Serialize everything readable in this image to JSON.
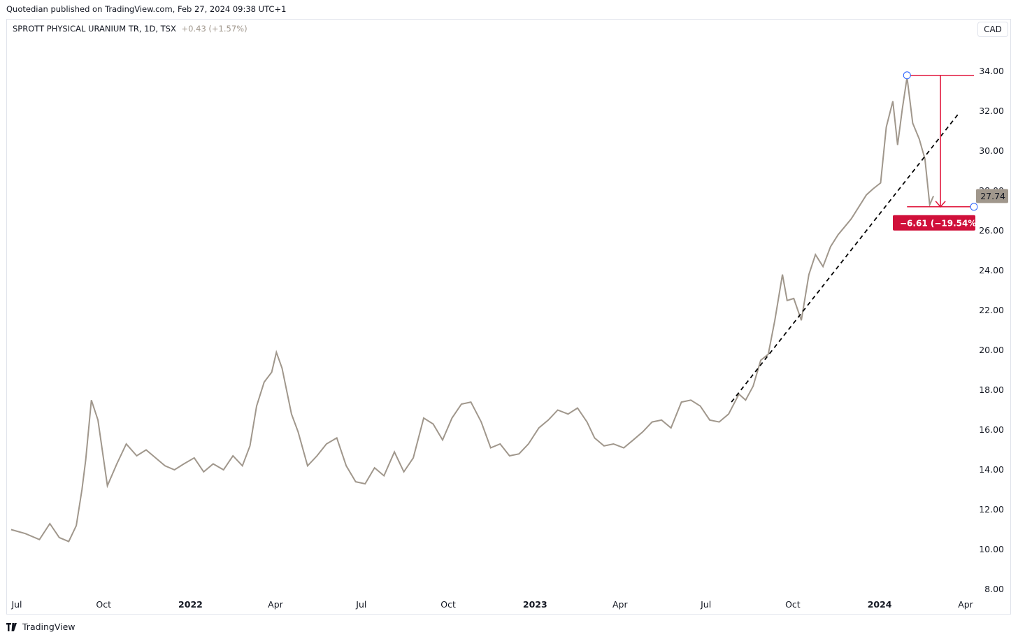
{
  "header": {
    "published_by": "Quotedian published on TradingView.com, Feb 27, 2024 09:38 UTC+1",
    "symbol_title": "SPROTT PHYSICAL URANIUM TR, 1D, TSX",
    "change_text": "+0.43 (+1.57%)",
    "currency_button": "CAD"
  },
  "footer": {
    "brand": "TradingView"
  },
  "colors": {
    "price_line": "#a0978c",
    "measure_red": "#e0173c",
    "label_red_bg": "#d0103a",
    "last_price_bg": "#a0978c",
    "trendline": "#000000"
  },
  "chart_data": {
    "type": "line",
    "title": "SPROTT PHYSICAL URANIUM TR, 1D, TSX",
    "xlabel": "",
    "ylabel": "",
    "ylim": [
      8,
      35
    ],
    "y_ticks": [
      "8.00",
      "10.00",
      "12.00",
      "14.00",
      "16.00",
      "18.00",
      "20.00",
      "22.00",
      "24.00",
      "26.00",
      "28.00",
      "30.00",
      "32.00",
      "34.00"
    ],
    "x_ticks": [
      {
        "label": "Jul",
        "date": "2021-07-01",
        "bold": false
      },
      {
        "label": "Oct",
        "date": "2021-10-01",
        "bold": false
      },
      {
        "label": "2022",
        "date": "2022-01-01",
        "bold": true
      },
      {
        "label": "Apr",
        "date": "2022-04-01",
        "bold": false
      },
      {
        "label": "Jul",
        "date": "2022-07-01",
        "bold": false
      },
      {
        "label": "Oct",
        "date": "2022-10-01",
        "bold": false
      },
      {
        "label": "2023",
        "date": "2023-01-01",
        "bold": true
      },
      {
        "label": "Apr",
        "date": "2023-04-01",
        "bold": false
      },
      {
        "label": "Jul",
        "date": "2023-07-01",
        "bold": false
      },
      {
        "label": "Oct",
        "date": "2023-10-01",
        "bold": false
      },
      {
        "label": "2024",
        "date": "2024-01-01",
        "bold": true
      },
      {
        "label": "Apr",
        "date": "2024-04-01",
        "bold": false
      }
    ],
    "grid": false,
    "series": [
      {
        "x": [
          "2021-06-25",
          "2021-07-10",
          "2021-07-25",
          "2021-08-05",
          "2021-08-15",
          "2021-08-25",
          "2021-09-02",
          "2021-09-08",
          "2021-09-12",
          "2021-09-18",
          "2021-09-25",
          "2021-10-05",
          "2021-10-15",
          "2021-10-25",
          "2021-11-05",
          "2021-11-15",
          "2021-11-25",
          "2021-12-05",
          "2021-12-15",
          "2021-12-25",
          "2022-01-05",
          "2022-01-15",
          "2022-01-25",
          "2022-02-05",
          "2022-02-15",
          "2022-02-25",
          "2022-03-05",
          "2022-03-12",
          "2022-03-20",
          "2022-03-28",
          "2022-04-02",
          "2022-04-08",
          "2022-04-18",
          "2022-04-25",
          "2022-05-05",
          "2022-05-15",
          "2022-05-25",
          "2022-06-05",
          "2022-06-15",
          "2022-06-25",
          "2022-07-05",
          "2022-07-15",
          "2022-07-25",
          "2022-08-05",
          "2022-08-15",
          "2022-08-25",
          "2022-09-05",
          "2022-09-15",
          "2022-09-25",
          "2022-10-05",
          "2022-10-15",
          "2022-10-25",
          "2022-11-05",
          "2022-11-15",
          "2022-11-25",
          "2022-12-05",
          "2022-12-15",
          "2022-12-25",
          "2023-01-05",
          "2023-01-15",
          "2023-01-25",
          "2023-02-05",
          "2023-02-15",
          "2023-02-25",
          "2023-03-05",
          "2023-03-15",
          "2023-03-25",
          "2023-04-05",
          "2023-04-15",
          "2023-04-25",
          "2023-05-05",
          "2023-05-15",
          "2023-05-25",
          "2023-06-05",
          "2023-06-15",
          "2023-06-25",
          "2023-07-05",
          "2023-07-15",
          "2023-07-25",
          "2023-08-05",
          "2023-08-12",
          "2023-08-20",
          "2023-08-28",
          "2023-09-05",
          "2023-09-12",
          "2023-09-20",
          "2023-09-25",
          "2023-10-02",
          "2023-10-10",
          "2023-10-18",
          "2023-10-25",
          "2023-11-02",
          "2023-11-10",
          "2023-11-18",
          "2023-11-25",
          "2023-12-02",
          "2023-12-10",
          "2023-12-18",
          "2023-12-25",
          "2024-01-02",
          "2024-01-08",
          "2024-01-15",
          "2024-01-20",
          "2024-01-25",
          "2024-01-30",
          "2024-02-05",
          "2024-02-12",
          "2024-02-18",
          "2024-02-23",
          "2024-02-27"
        ],
        "y": [
          11.0,
          10.8,
          10.5,
          11.3,
          10.6,
          10.4,
          11.2,
          13.0,
          14.5,
          17.5,
          16.5,
          13.2,
          14.3,
          15.3,
          14.7,
          15.0,
          14.6,
          14.2,
          14.0,
          14.3,
          14.6,
          13.9,
          14.3,
          14.0,
          14.7,
          14.2,
          15.2,
          17.2,
          18.4,
          18.9,
          19.9,
          19.1,
          16.8,
          15.9,
          14.2,
          14.7,
          15.3,
          15.6,
          14.2,
          13.4,
          13.3,
          14.1,
          13.7,
          14.9,
          13.9,
          14.6,
          16.6,
          16.3,
          15.5,
          16.6,
          17.3,
          17.4,
          16.4,
          15.1,
          15.3,
          14.7,
          14.8,
          15.3,
          16.1,
          16.5,
          17.0,
          16.8,
          17.1,
          16.4,
          15.6,
          15.2,
          15.3,
          15.1,
          15.5,
          15.9,
          16.4,
          16.5,
          16.1,
          17.4,
          17.5,
          17.2,
          16.5,
          16.4,
          16.8,
          17.8,
          17.5,
          18.2,
          19.5,
          19.8,
          21.5,
          23.8,
          22.5,
          22.6,
          21.5,
          23.8,
          24.8,
          24.2,
          25.2,
          25.8,
          26.2,
          26.6,
          27.2,
          27.8,
          28.1,
          28.4,
          31.2,
          32.5,
          30.3,
          32.1,
          33.7,
          31.4,
          30.6,
          29.6,
          27.3,
          27.74
        ]
      }
    ],
    "annotations": {
      "last_price": "27.74",
      "measure_label": "−6.61 (−19.54%) −",
      "measure_from": {
        "date": "2024-01-30",
        "value": 33.8
      },
      "measure_to": {
        "date": "2024-02-27",
        "value": 27.2
      },
      "trendline_from": {
        "date": "2023-07-28",
        "value": 17.4
      },
      "trendline_to": {
        "date": "2024-03-25",
        "value": 31.9
      }
    }
  }
}
